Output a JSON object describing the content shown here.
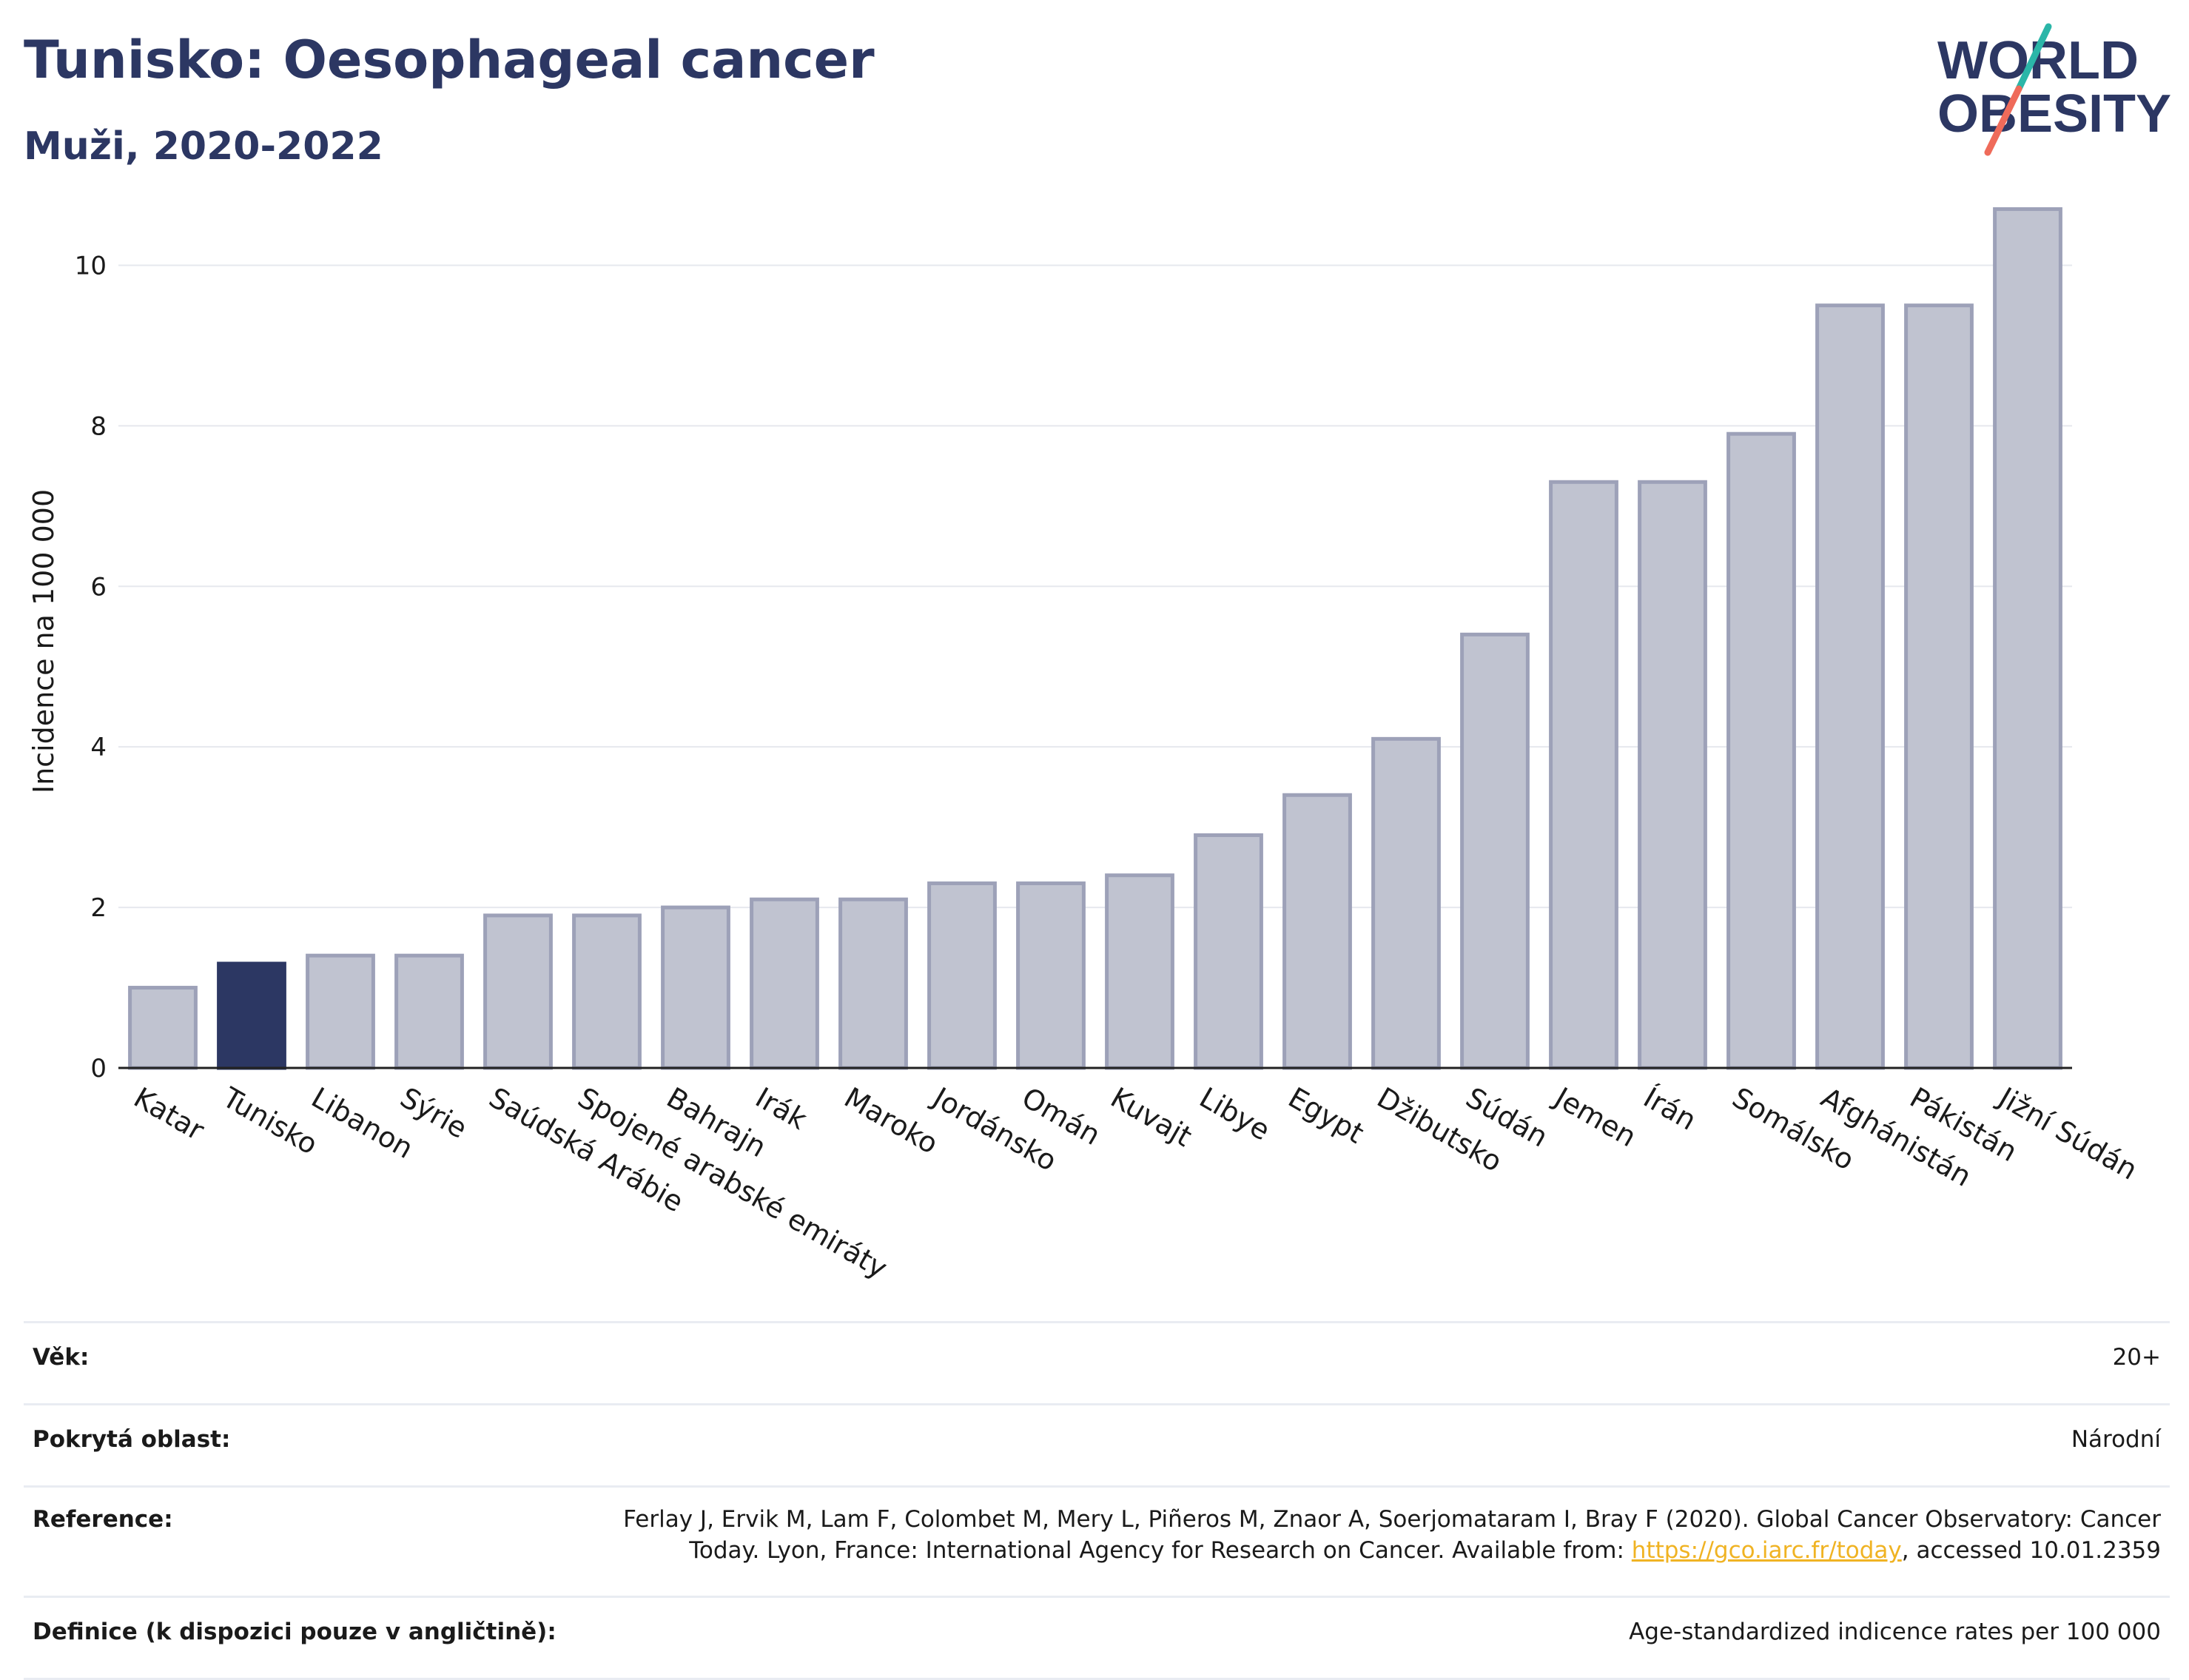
{
  "header": {
    "title": "Tunisko: Oesophageal cancer",
    "subtitle": "Muži, 2020-2022"
  },
  "logo": {
    "line1": "WORLD",
    "line2": "OBESITY",
    "colors": {
      "text": "#2c3763",
      "accent_teal": "#2bb6a8",
      "accent_coral": "#ef6b5a"
    }
  },
  "chart_data": {
    "type": "bar",
    "title": "Tunisko: Oesophageal cancer",
    "subtitle": "Muži, 2020-2022",
    "ylabel": "Incidence na 100 000",
    "xlabel": "",
    "ylim": [
      0,
      11
    ],
    "yticks": [
      0,
      2,
      4,
      6,
      8,
      10
    ],
    "grid": true,
    "legend": "none",
    "highlight_category": "Tunisko",
    "colors": {
      "default": "#c0c3d0",
      "default_edge": "#9da1b8",
      "highlight": "#2c3763"
    },
    "categories": [
      "Katar",
      "Tunisko",
      "Libanon",
      "Sýrie",
      "Saúdská Arábie",
      "Spojené arabské emiráty",
      "Bahrajn",
      "Irák",
      "Maroko",
      "Jordánsko",
      "Omán",
      "Kuvajt",
      "Libye",
      "Egypt",
      "Džibutsko",
      "Súdán",
      "Jemen",
      "Írán",
      "Somálsko",
      "Afghánistán",
      "Pákistán",
      "Jižní Súdán"
    ],
    "values": [
      1.0,
      1.3,
      1.4,
      1.4,
      1.9,
      1.9,
      2.0,
      2.1,
      2.1,
      2.3,
      2.3,
      2.4,
      2.9,
      3.4,
      4.1,
      5.4,
      7.3,
      7.3,
      7.9,
      9.5,
      9.5,
      10.7
    ]
  },
  "info": {
    "age_label": "Věk:",
    "age_value": "20+",
    "coverage_label": "Pokrytá oblast:",
    "coverage_value": "Národní",
    "reference_label": "Reference:",
    "reference_line1": "Ferlay J, Ervik M, Lam F, Colombet M, Mery L, Piñeros M, Znaor A, Soerjomataram I, Bray F (2020). Global Cancer Observatory: Cancer",
    "reference_line2_pre": "Today. Lyon, France: International Agency for Research on Cancer. Available from: ",
    "reference_link": "https://gco.iarc.fr/today",
    "reference_line2_post": ", accessed 10.01.2359",
    "definition_label": "Definice (k dispozici pouze v angličtině):",
    "definition_value": "Age-standardized indicence rates per 100 000"
  }
}
